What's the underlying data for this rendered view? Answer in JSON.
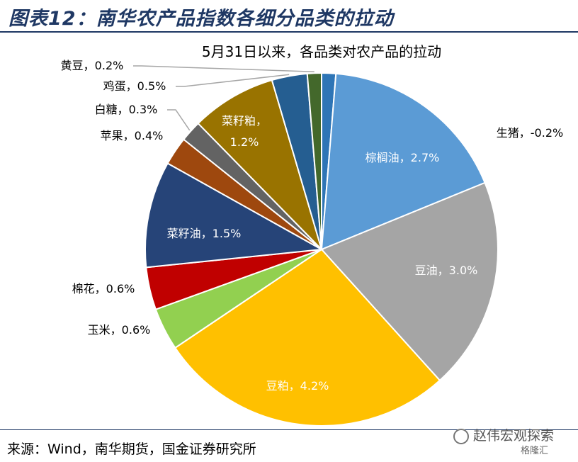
{
  "figure": {
    "title": "图表12：南华农产品指数各细分品类的拉动",
    "source": "来源：Wind，南华期货，国金证券研究所",
    "watermark": "赵伟宏观探索",
    "watermark2": "格隆汇"
  },
  "chart_data": {
    "type": "pie",
    "title": "5月31日以来，各品类对农产品的拉动",
    "unit": "%",
    "slices": [
      {
        "name": "生猪",
        "value": -0.2,
        "label": "生猪，-0.2%",
        "color": "#2e75b6"
      },
      {
        "name": "棕榈油",
        "value": 2.7,
        "label": "棕榈油，2.7%",
        "color": "#5b9bd5"
      },
      {
        "name": "豆油",
        "value": 3.0,
        "label": "豆油，3.0%",
        "color": "#a5a5a5"
      },
      {
        "name": "豆粕",
        "value": 4.2,
        "label": "豆粕，4.2%",
        "color": "#ffc000"
      },
      {
        "name": "玉米",
        "value": 0.6,
        "label": "玉米，0.6%",
        "color": "#92d050"
      },
      {
        "name": "棉花",
        "value": 0.6,
        "label": "棉花，0.6%",
        "color": "#c00000"
      },
      {
        "name": "菜籽油",
        "value": 1.5,
        "label": "菜籽油，1.5%",
        "color": "#264478"
      },
      {
        "name": "苹果",
        "value": 0.4,
        "label": "苹果，0.4%",
        "color": "#9e480e"
      },
      {
        "name": "白糖",
        "value": 0.3,
        "label": "白糖，0.3%",
        "color": "#636363"
      },
      {
        "name": "菜籽粕",
        "value": 1.2,
        "label": "菜籽粕，1.2%",
        "color": "#997300"
      },
      {
        "name": "鸡蛋",
        "value": 0.5,
        "label": "鸡蛋，0.5%",
        "color": "#255e91"
      },
      {
        "name": "黄豆",
        "value": 0.2,
        "label": "黄豆，0.2%",
        "color": "#43682b"
      }
    ]
  }
}
